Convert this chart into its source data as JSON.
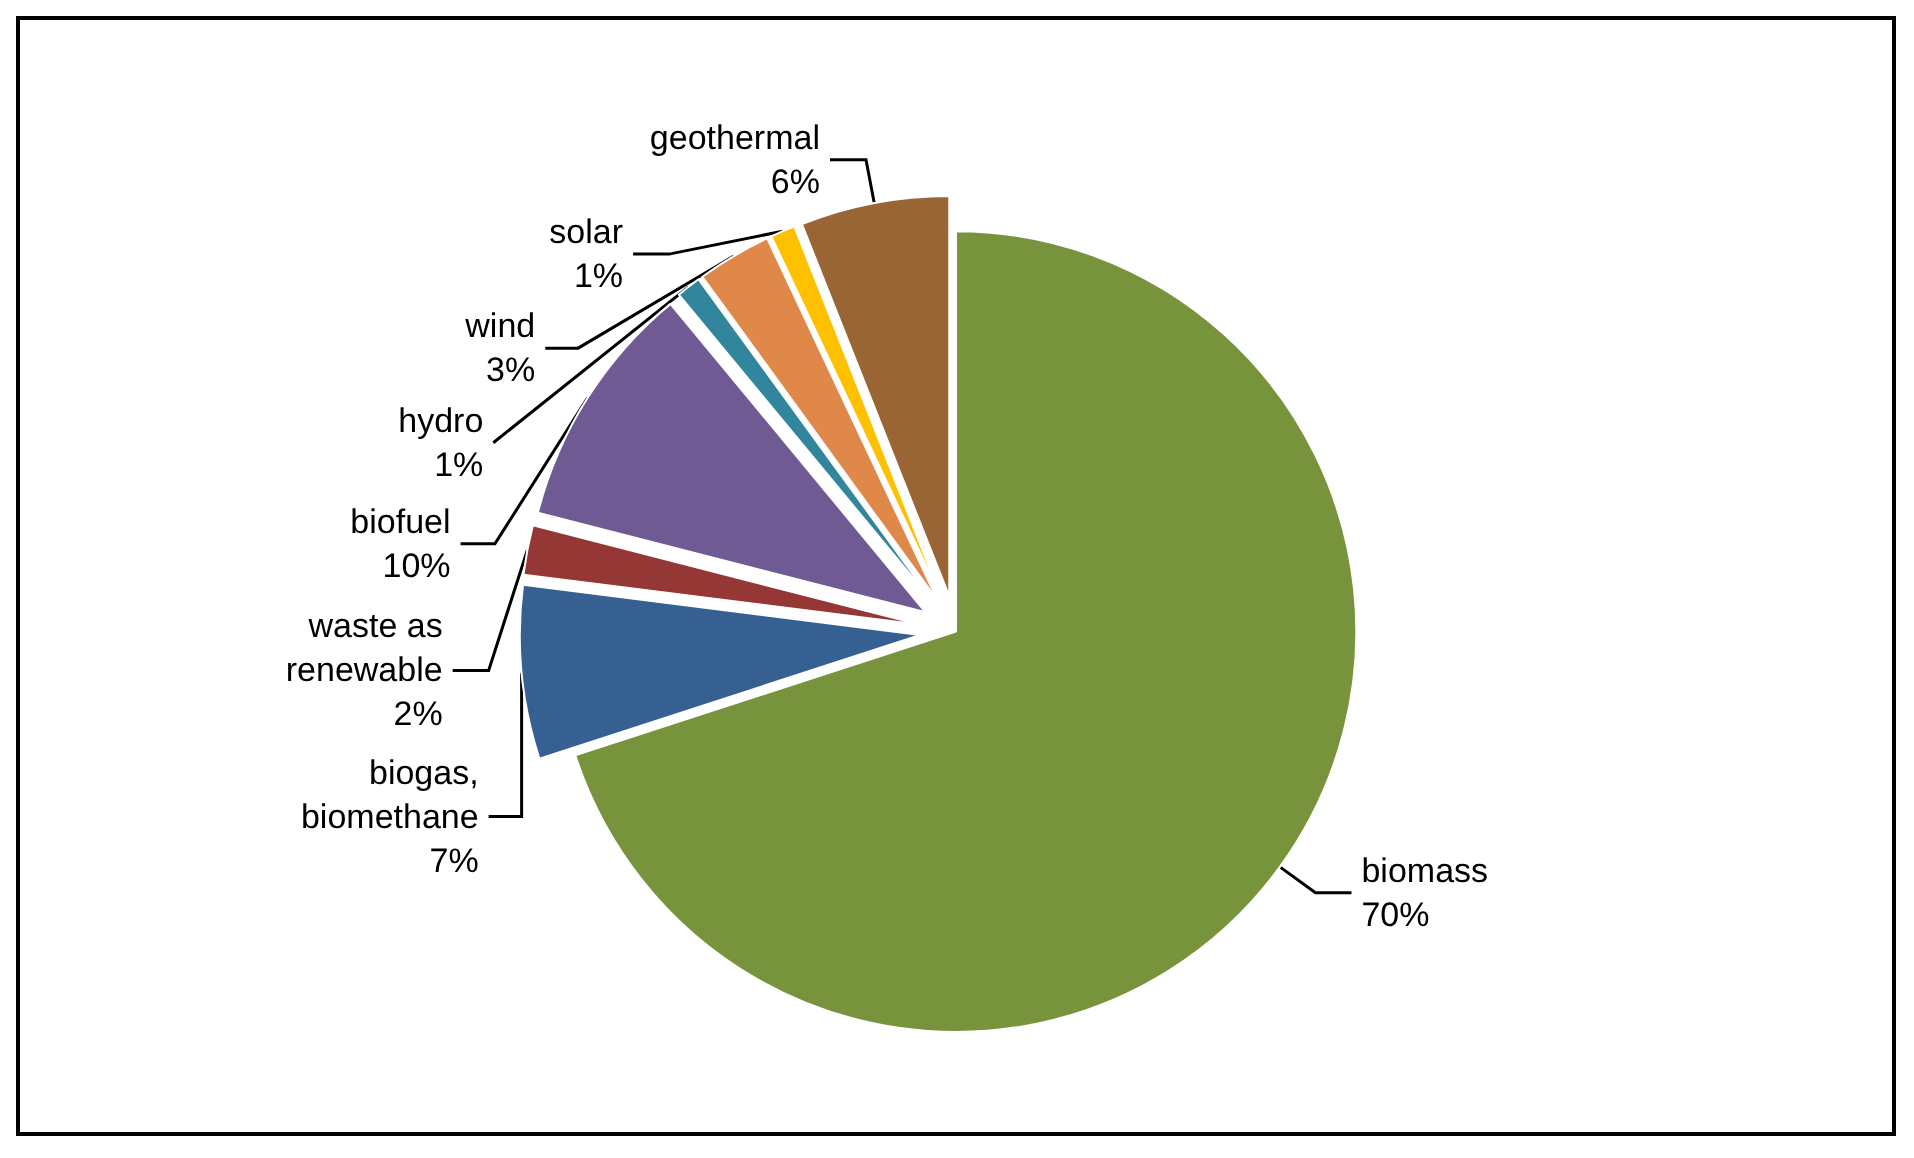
{
  "chart_data": {
    "type": "pie",
    "categories": [
      "biomass",
      "biogas,\nbiomethane",
      "waste as\nrenewable",
      "biofuel",
      "hydro",
      "wind",
      "solar",
      "geothermal"
    ],
    "values": [
      70,
      7,
      2,
      10,
      1,
      3,
      1,
      6
    ],
    "value_labels": [
      "70%",
      "7%",
      "2%",
      "10%",
      "1%",
      "3%",
      "1%",
      "6%"
    ],
    "colors": [
      "#77933c",
      "#376092",
      "#953735",
      "#705a94",
      "#31859c",
      "#e0874a",
      "#ffc000",
      "#9a6534"
    ],
    "legend": false
  }
}
